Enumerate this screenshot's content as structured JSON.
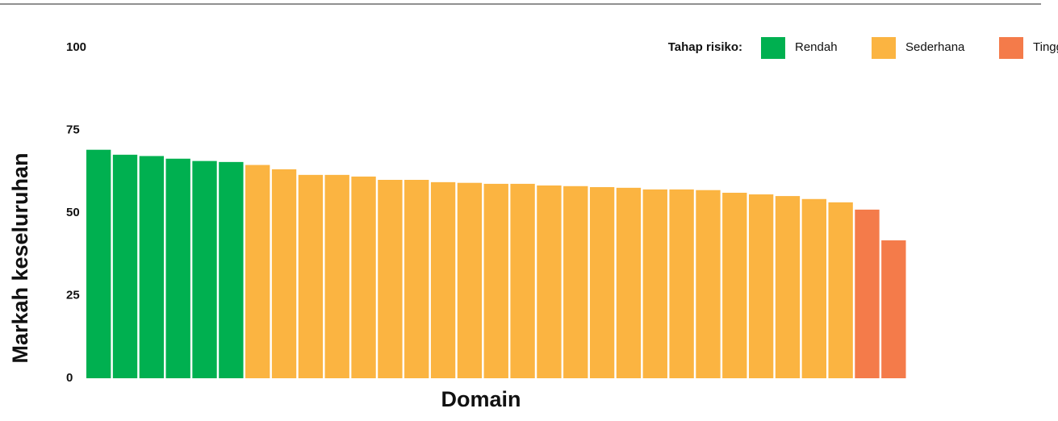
{
  "chart_data": {
    "type": "bar",
    "y_label": "Markah keseluruhan",
    "x_label": "Domain",
    "legend_title": "Tahap risiko:",
    "categories": [
      null,
      null,
      null,
      null,
      null,
      null,
      null,
      null,
      null,
      null,
      null,
      null,
      null,
      null,
      null,
      null,
      null,
      null,
      null,
      null,
      null,
      null,
      null,
      null,
      null,
      null,
      null,
      null,
      null,
      null,
      null
    ],
    "series": [
      {
        "name": "Rendah",
        "color": "#00b050",
        "values": [
          69.1,
          67.6,
          67.2,
          66.4,
          65.7,
          65.4,
          null,
          null,
          null,
          null,
          null,
          null,
          null,
          null,
          null,
          null,
          null,
          null,
          null,
          null,
          null,
          null,
          null,
          null,
          null,
          null,
          null,
          null,
          null,
          null,
          null
        ]
      },
      {
        "name": "Sederhana",
        "color": "#fbb441",
        "values": [
          null,
          null,
          null,
          null,
          null,
          null,
          64.5,
          63.2,
          61.5,
          61.5,
          61.0,
          60.0,
          60.0,
          59.3,
          59.1,
          58.8,
          58.8,
          58.3,
          58.1,
          57.8,
          57.6,
          57.1,
          57.1,
          56.9,
          56.1,
          55.6,
          55.1,
          54.2,
          53.2,
          null,
          null
        ]
      },
      {
        "name": "Tinggi",
        "color": "#f47b4a",
        "values": [
          null,
          null,
          null,
          null,
          null,
          null,
          null,
          null,
          null,
          null,
          null,
          null,
          null,
          null,
          null,
          null,
          null,
          null,
          null,
          null,
          null,
          null,
          null,
          null,
          null,
          null,
          null,
          null,
          null,
          51.0,
          41.7
        ]
      }
    ],
    "ylim": [
      0,
      100
    ],
    "yticks": [
      0,
      25,
      50,
      75,
      100
    ]
  }
}
